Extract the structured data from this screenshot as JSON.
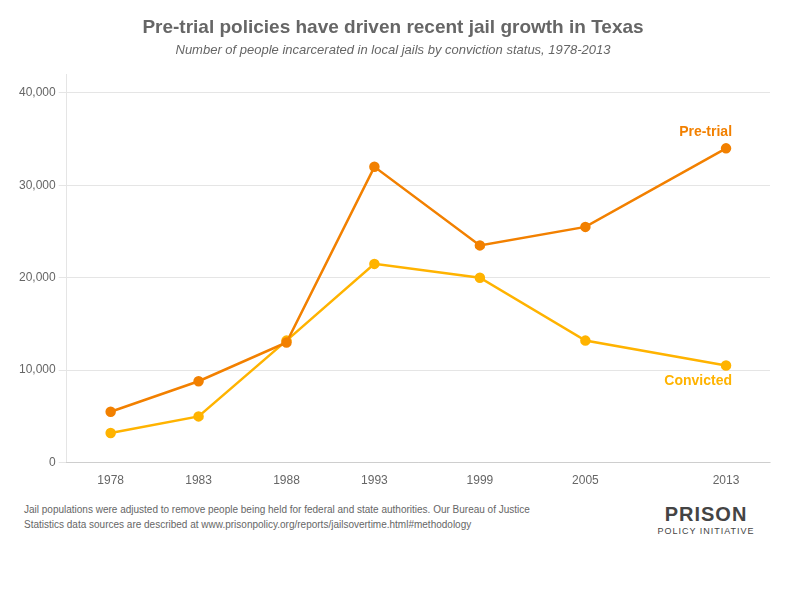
{
  "chart_data": {
    "type": "line",
    "title": "Pre-trial policies have driven recent jail growth in Texas",
    "subtitle": "Number of people incarcerated in local jails by conviction status, 1978-2013",
    "x": [
      1978,
      1983,
      1988,
      1993,
      1999,
      2005,
      2013
    ],
    "series": [
      {
        "name": "Pre-trial",
        "color": "#F28000",
        "values": [
          5500,
          8800,
          13000,
          32000,
          23500,
          25500,
          34000
        ]
      },
      {
        "name": "Convicted",
        "color": "#FFB300",
        "values": [
          3200,
          5000,
          13200,
          21500,
          20000,
          13200,
          10500
        ]
      }
    ],
    "xlim": [
      1975.5,
      2015.5
    ],
    "xticks": [
      1978,
      1983,
      1988,
      1993,
      1999,
      2005,
      2013
    ],
    "ylim": [
      0,
      42000
    ],
    "yticks": [
      0,
      {
        "value": 10000,
        "label": "10,000"
      },
      {
        "value": 20000,
        "label": "20,000"
      },
      {
        "value": 30000,
        "label": "30,000"
      },
      {
        "value": 40000,
        "label": "40,000"
      }
    ],
    "grid": true,
    "marker": "circle",
    "footnote": [
      "Jail populations were adjusted to remove people being held for federal and state authorities. Our Bureau of Justice",
      "Statistics data sources are described at www.prisonpolicy.org/reports/jailsovertime.html#methodology"
    ],
    "annotations": [
      "PRISON",
      "POLICY INITIATIVE"
    ]
  }
}
